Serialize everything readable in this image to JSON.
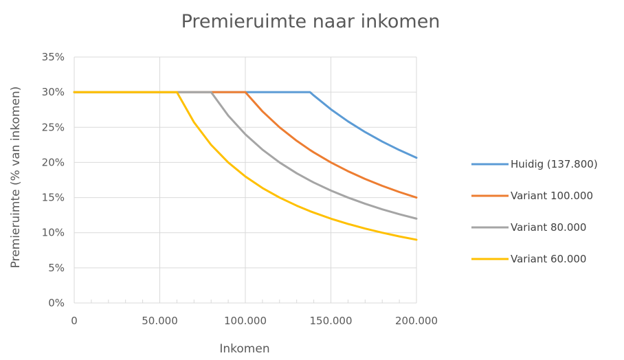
{
  "chart_data": {
    "type": "line",
    "title": "Premieruimte naar inkomen",
    "xlabel": "Inkomen",
    "ylabel": "Premieruimte (% van inkomen)",
    "xlim": [
      0,
      200000
    ],
    "ylim": [
      0,
      0.35
    ],
    "x_ticks": [
      0,
      50000,
      100000,
      150000,
      200000
    ],
    "x_tick_labels": [
      "0",
      "50.000",
      "100.000",
      "150.000",
      "200.000"
    ],
    "y_ticks": [
      0,
      0.05,
      0.1,
      0.15,
      0.2,
      0.25,
      0.3,
      0.35
    ],
    "y_tick_labels": [
      "0%",
      "5%",
      "10%",
      "15%",
      "20%",
      "25%",
      "30%",
      "35%"
    ],
    "grid": true,
    "legend_position": "right",
    "x": [
      0,
      10000,
      20000,
      30000,
      40000,
      50000,
      60000,
      70000,
      80000,
      90000,
      100000,
      110000,
      120000,
      130000,
      137800,
      140000,
      150000,
      160000,
      170000,
      180000,
      190000,
      200000
    ],
    "series": [
      {
        "name": "Huidig (137.800)",
        "color": "#5b9bd5",
        "values": [
          0.3,
          0.3,
          0.3,
          0.3,
          0.3,
          0.3,
          0.3,
          0.3,
          0.3,
          0.3,
          0.3,
          0.3,
          0.3,
          0.3,
          0.3,
          0.2953,
          0.2756,
          0.2584,
          0.2432,
          0.2297,
          0.2176,
          0.2067
        ]
      },
      {
        "name": "Variant 100.000",
        "color": "#ed7d31",
        "values": [
          0.3,
          0.3,
          0.3,
          0.3,
          0.3,
          0.3,
          0.3,
          0.3,
          0.3,
          0.3,
          0.3,
          0.2727,
          0.25,
          0.2308,
          0.2177,
          0.2143,
          0.2,
          0.1875,
          0.1765,
          0.1667,
          0.1579,
          0.15
        ]
      },
      {
        "name": "Variant 80.000",
        "color": "#a5a5a5",
        "values": [
          0.3,
          0.3,
          0.3,
          0.3,
          0.3,
          0.3,
          0.3,
          0.3,
          0.3,
          0.2667,
          0.24,
          0.2182,
          0.2,
          0.1846,
          0.1742,
          0.1714,
          0.16,
          0.15,
          0.1412,
          0.1333,
          0.1263,
          0.12
        ]
      },
      {
        "name": "Variant 60.000",
        "color": "#ffc000",
        "values": [
          0.3,
          0.3,
          0.3,
          0.3,
          0.3,
          0.3,
          0.3,
          0.2571,
          0.225,
          0.2,
          0.18,
          0.1636,
          0.15,
          0.1385,
          0.1306,
          0.1286,
          0.12,
          0.1125,
          0.1059,
          0.1,
          0.0947,
          0.09
        ]
      }
    ]
  }
}
